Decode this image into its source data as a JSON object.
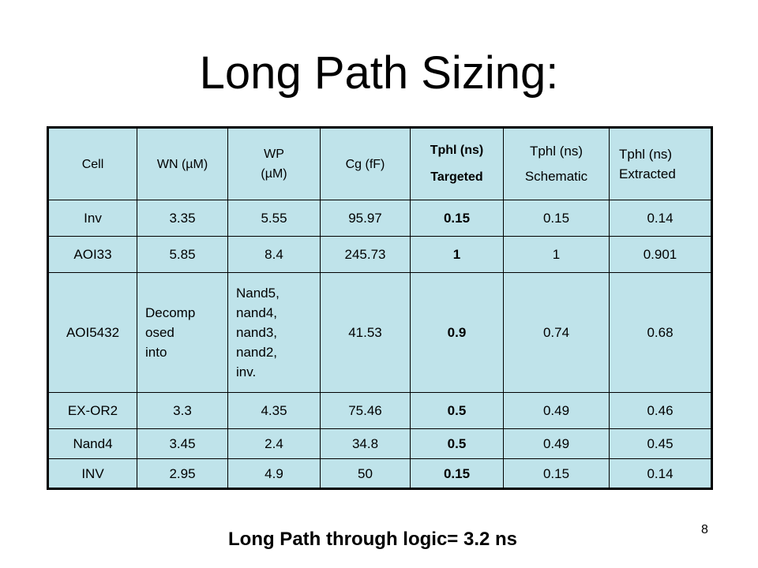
{
  "title": "Long Path Sizing:",
  "table": {
    "headers": {
      "cell": "Cell",
      "wn": "WN (µM)",
      "wp_line1": "WP",
      "wp_line2": "(µM)",
      "cg": "Cg (fF)",
      "targeted_line1": "Tphl (ns)",
      "targeted_line2": "Targeted",
      "schematic_line1": "Tphl (ns)",
      "schematic_line2": "Schematic",
      "extracted_line1": "Tphl (ns)",
      "extracted_line2": "Extracted"
    },
    "rows": [
      {
        "cell": "Inv",
        "wn": "3.35",
        "wp": "5.55",
        "cg": "95.97",
        "targeted": "0.15",
        "schematic": "0.15",
        "extracted": "0.14"
      },
      {
        "cell": "AOI33",
        "wn": "5.85",
        "wp": "8.4",
        "cg": "245.73",
        "targeted": "1",
        "schematic": "1",
        "extracted": "0.901"
      },
      {
        "cell": "AOI5432",
        "wn_lines": [
          "Decomp",
          "osed",
          "into"
        ],
        "wp_lines": [
          "Nand5,",
          "nand4,",
          "nand3,",
          "nand2,",
          "inv."
        ],
        "cg": "41.53",
        "targeted": "0.9",
        "schematic": "0.74",
        "extracted": "0.68"
      },
      {
        "cell": "EX-OR2",
        "wn": "3.3",
        "wp": "4.35",
        "cg": "75.46",
        "targeted": "0.5",
        "schematic": "0.49",
        "extracted": "0.46"
      },
      {
        "cell": "Nand4",
        "wn": "3.45",
        "wp": "2.4",
        "cg": "34.8",
        "targeted": "0.5",
        "schematic": "0.49",
        "extracted": "0.45"
      },
      {
        "cell": "INV",
        "wn": "2.95",
        "wp": "4.9",
        "cg": "50",
        "targeted": "0.15",
        "schematic": "0.15",
        "extracted": "0.14"
      }
    ]
  },
  "footer": "Long Path through logic= 3.2 ns",
  "page_number": "8"
}
